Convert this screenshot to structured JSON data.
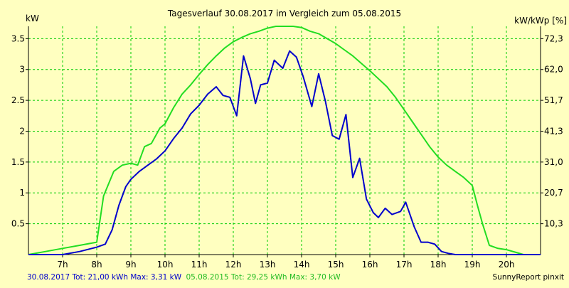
{
  "colors": {
    "background": "#ffffc0",
    "grid": "#00cc00",
    "series_2017": "#0000cc",
    "series_2015": "#22dd22",
    "axis": "#000000"
  },
  "chart_data": {
    "type": "line",
    "title": "Tagesverlauf 30.08.2017 im Vergleich zum 05.08.2015",
    "y_left_unit": "kW",
    "y_right_unit": "kW/kWp [%]",
    "xlim": [
      6.0,
      21.0
    ],
    "ylim": [
      0,
      3.7
    ],
    "x_ticks": [
      {
        "value": 7,
        "label": "7h"
      },
      {
        "value": 8,
        "label": "8h"
      },
      {
        "value": 9,
        "label": "9h"
      },
      {
        "value": 10,
        "label": "10h"
      },
      {
        "value": 11,
        "label": "11h"
      },
      {
        "value": 12,
        "label": "12h"
      },
      {
        "value": 13,
        "label": "13h"
      },
      {
        "value": 14,
        "label": "14h"
      },
      {
        "value": 15,
        "label": "15h"
      },
      {
        "value": 16,
        "label": "16h"
      },
      {
        "value": 17,
        "label": "17h"
      },
      {
        "value": 18,
        "label": "18h"
      },
      {
        "value": 19,
        "label": "19h"
      },
      {
        "value": 20,
        "label": "20h"
      }
    ],
    "y_ticks_left": [
      {
        "value": 0.5,
        "label": "0.5"
      },
      {
        "value": 1.0,
        "label": "1"
      },
      {
        "value": 1.5,
        "label": "1.5"
      },
      {
        "value": 2.0,
        "label": "2"
      },
      {
        "value": 2.5,
        "label": "2.5"
      },
      {
        "value": 3.0,
        "label": "3"
      },
      {
        "value": 3.5,
        "label": "3.5"
      }
    ],
    "y_ticks_right": [
      {
        "value": 0.5,
        "label": "10,3"
      },
      {
        "value": 1.0,
        "label": "20,7"
      },
      {
        "value": 1.5,
        "label": "31,0"
      },
      {
        "value": 2.0,
        "label": "41,3"
      },
      {
        "value": 2.5,
        "label": "51,7"
      },
      {
        "value": 3.0,
        "label": "62,0"
      },
      {
        "value": 3.5,
        "label": "72,3"
      }
    ],
    "grid": true,
    "series": [
      {
        "name": "30.08.2017",
        "x": [
          6.0,
          6.5,
          7.0,
          7.5,
          8.0,
          8.25,
          8.45,
          8.65,
          8.85,
          9.0,
          9.25,
          9.5,
          9.75,
          10.0,
          10.25,
          10.5,
          10.75,
          11.0,
          11.25,
          11.5,
          11.7,
          11.9,
          12.1,
          12.3,
          12.5,
          12.65,
          12.8,
          13.0,
          13.2,
          13.45,
          13.65,
          13.85,
          14.05,
          14.3,
          14.5,
          14.7,
          14.9,
          15.1,
          15.3,
          15.5,
          15.7,
          15.9,
          16.1,
          16.25,
          16.45,
          16.65,
          16.9,
          17.05,
          17.3,
          17.5,
          17.7,
          17.9,
          18.1,
          18.3,
          18.5,
          18.7,
          18.9,
          19.1,
          19.3,
          19.5,
          19.75,
          20.0,
          20.25,
          20.5,
          20.75,
          21.0
        ],
        "values": [
          0,
          0,
          0,
          0.05,
          0.12,
          0.17,
          0.4,
          0.8,
          1.1,
          1.22,
          1.35,
          1.45,
          1.55,
          1.68,
          1.88,
          2.05,
          2.28,
          2.42,
          2.6,
          2.72,
          2.58,
          2.55,
          2.25,
          3.22,
          2.85,
          2.45,
          2.75,
          2.78,
          3.15,
          3.02,
          3.3,
          3.2,
          2.88,
          2.4,
          2.93,
          2.48,
          1.93,
          1.87,
          2.27,
          1.25,
          1.56,
          0.9,
          0.68,
          0.6,
          0.75,
          0.65,
          0.7,
          0.85,
          0.45,
          0.2,
          0.2,
          0.17,
          0.05,
          0.02,
          0,
          0,
          0,
          0,
          0,
          0,
          0,
          0,
          0,
          0,
          0,
          0
        ]
      },
      {
        "name": "05.08.2015",
        "x": [
          6.0,
          6.5,
          7.0,
          7.5,
          8.0,
          8.2,
          8.35,
          8.5,
          8.75,
          9.0,
          9.2,
          9.4,
          9.6,
          9.85,
          10.0,
          10.25,
          10.5,
          10.75,
          11.0,
          11.25,
          11.5,
          11.75,
          12.0,
          12.25,
          12.5,
          12.75,
          13.0,
          13.25,
          13.5,
          13.75,
          14.0,
          14.25,
          14.5,
          14.75,
          15.0,
          15.25,
          15.5,
          15.75,
          16.0,
          16.25,
          16.5,
          16.75,
          17.0,
          17.25,
          17.5,
          17.75,
          18.0,
          18.25,
          18.5,
          18.75,
          19.0,
          19.15,
          19.3,
          19.5,
          19.75,
          20.0,
          20.25,
          20.5,
          20.75,
          21.0
        ],
        "values": [
          0,
          0.05,
          0.1,
          0.15,
          0.2,
          0.95,
          1.15,
          1.35,
          1.45,
          1.48,
          1.45,
          1.75,
          1.8,
          2.05,
          2.12,
          2.38,
          2.6,
          2.75,
          2.92,
          3.08,
          3.22,
          3.35,
          3.45,
          3.52,
          3.58,
          3.62,
          3.67,
          3.72,
          3.74,
          3.73,
          3.68,
          3.62,
          3.58,
          3.5,
          3.42,
          3.32,
          3.22,
          3.1,
          2.98,
          2.85,
          2.72,
          2.55,
          2.35,
          2.15,
          1.95,
          1.75,
          1.58,
          1.45,
          1.35,
          1.25,
          1.12,
          0.8,
          0.5,
          0.15,
          0.1,
          0.08,
          0.04,
          0,
          0,
          0
        ]
      }
    ]
  },
  "footer": {
    "series_2017_text": "30.08.2017 Tot: 21,00 kWh Max: 3,31 kW",
    "series_2015_text": "05.08.2015 Tot: 29,25 kWh Max: 3,70 kW",
    "credit": "SunnyReport pinxit"
  }
}
